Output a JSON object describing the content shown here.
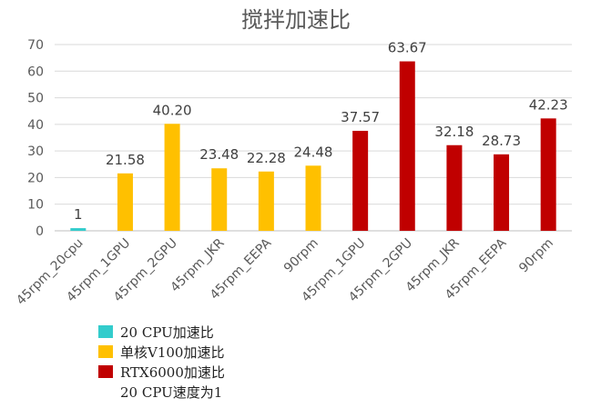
{
  "chart_data": {
    "type": "bar",
    "title": "搅拌加速比",
    "xlabel": "",
    "ylabel": "",
    "ylim": [
      0,
      70
    ],
    "yticks": [
      0,
      10,
      20,
      30,
      40,
      50,
      60,
      70
    ],
    "grid": true,
    "legend_position": "bottom-left",
    "categories": [
      "45rpm_20cpu",
      "45rpm_1GPU",
      "45rpm_2GPU",
      "45rpm_JKR",
      "45rpm_EEPA",
      "90rpm",
      "45rpm_1GPU",
      "45rpm_2GPU",
      "45rpm_JKR",
      "45rpm_EEPA",
      "90rpm"
    ],
    "values": [
      1,
      21.58,
      40.2,
      23.48,
      22.28,
      24.48,
      37.57,
      63.67,
      32.18,
      28.73,
      42.23
    ],
    "data_labels": [
      "1",
      "21.58",
      "40.20",
      "23.48",
      "22.28",
      "24.48",
      "37.57",
      "63.67",
      "32.18",
      "28.73",
      "42.23"
    ],
    "bar_series": [
      0,
      1,
      1,
      1,
      1,
      1,
      2,
      2,
      2,
      2,
      2
    ],
    "series": [
      {
        "name": "20 CPU加速比",
        "color": "#33CCCC"
      },
      {
        "name": "单核V100加速比",
        "color": "#FFC000"
      },
      {
        "name": "RTX6000加速比",
        "color": "#C00000"
      }
    ],
    "legend_note": "20 CPU速度为1"
  }
}
